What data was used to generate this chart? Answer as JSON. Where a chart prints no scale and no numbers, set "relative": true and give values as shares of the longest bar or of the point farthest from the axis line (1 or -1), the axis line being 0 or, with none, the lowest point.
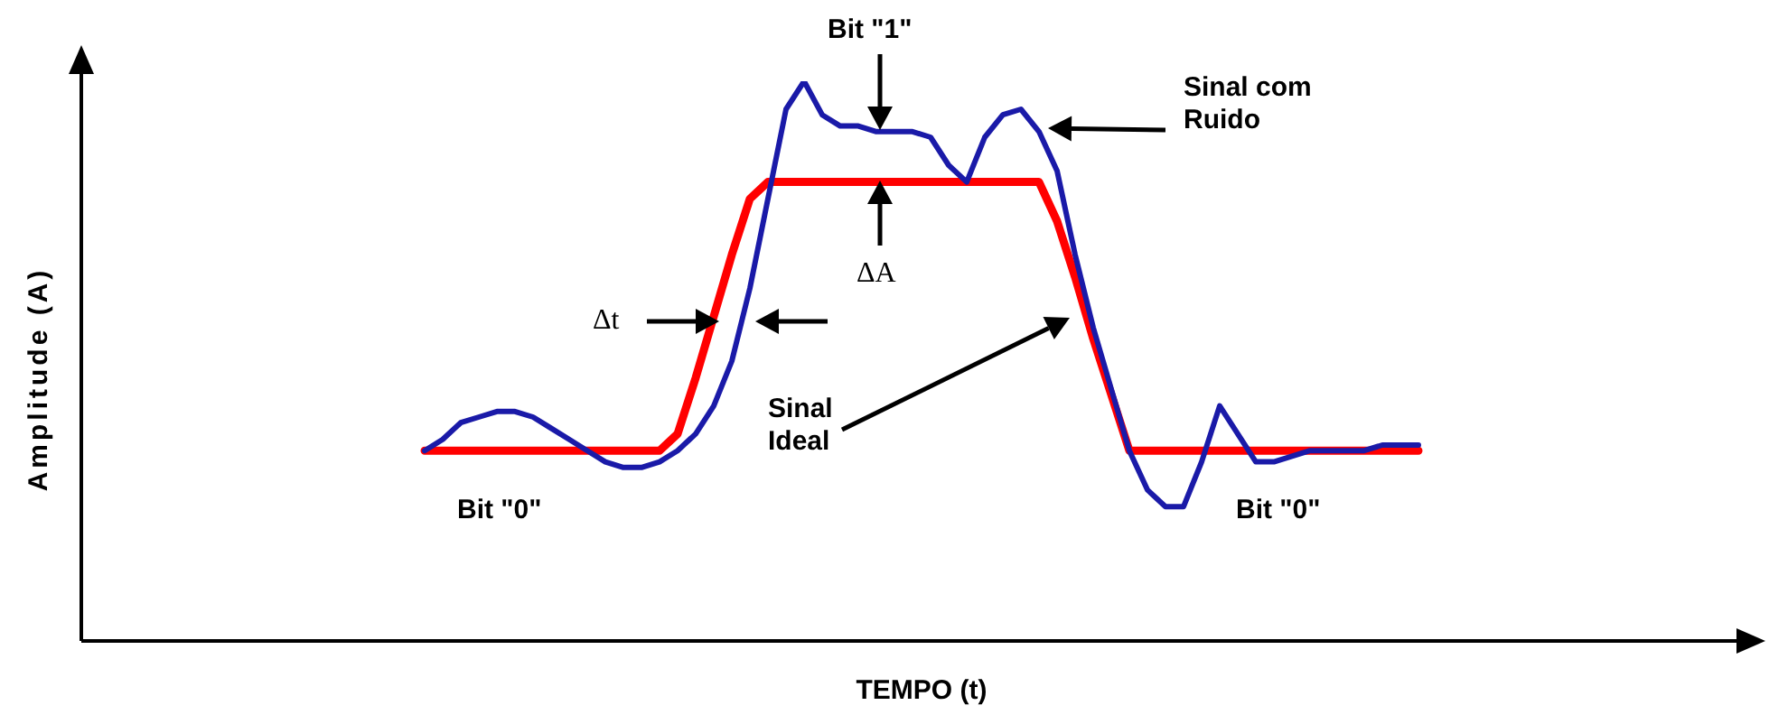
{
  "chart_data": {
    "type": "line",
    "relative": true,
    "xlabel": "TEMPO (t)",
    "ylabel": "Amplitude (A)",
    "legend": false,
    "marker": "none",
    "line_style": "solid",
    "categories": [
      null,
      null,
      null,
      null,
      null,
      null,
      null,
      null,
      null,
      null,
      null,
      null,
      null,
      null,
      null,
      null,
      null,
      null,
      null,
      null,
      null,
      null,
      null,
      null,
      null,
      null,
      null,
      null,
      null,
      null,
      null,
      null,
      null,
      null,
      null,
      null,
      null,
      null,
      null,
      null,
      null,
      null,
      null,
      null,
      null,
      null,
      null,
      null,
      null,
      null,
      null,
      null,
      null,
      null,
      null,
      null,
      null,
      null,
      null,
      null,
      null,
      null,
      null,
      null,
      null,
      null,
      null,
      null,
      null,
      null,
      null,
      null,
      null,
      null,
      null,
      null,
      null,
      null,
      null,
      null,
      null,
      null,
      null,
      null,
      null,
      null,
      null,
      null,
      null,
      null,
      null,
      null,
      null,
      null
    ],
    "series": [
      {
        "color": "#ff0000",
        "values": [
          null,
          null,
          null,
          null,
          null,
          null,
          null,
          null,
          null,
          null,
          null,
          null,
          null,
          null,
          null,
          null,
          null,
          null,
          null,
          0.34,
          0.34,
          0.34,
          0.34,
          0.34,
          0.34,
          0.34,
          0.34,
          0.34,
          0.34,
          0.34,
          0.34,
          0.34,
          0.34,
          0.37,
          0.47,
          0.58,
          0.69,
          0.79,
          0.82,
          0.82,
          0.82,
          0.82,
          0.82,
          0.82,
          0.82,
          0.82,
          0.82,
          0.82,
          0.82,
          0.82,
          0.82,
          0.82,
          0.82,
          0.82,
          0.75,
          0.65,
          0.54,
          0.44,
          0.34,
          0.34,
          0.34,
          0.34,
          0.34,
          0.34,
          0.34,
          0.34,
          0.34,
          0.34,
          0.34,
          0.34,
          0.34,
          0.34,
          0.34,
          0.34,
          0.34,
          null,
          null,
          null,
          null,
          null,
          null,
          null,
          null,
          null,
          null,
          null,
          null,
          null,
          null,
          null,
          null,
          null,
          null,
          null
        ]
      },
      {
        "color": "#1a1aa8",
        "values": [
          null,
          null,
          null,
          null,
          null,
          null,
          null,
          null,
          null,
          null,
          null,
          null,
          null,
          null,
          null,
          null,
          null,
          null,
          null,
          0.34,
          0.36,
          0.39,
          0.4,
          0.41,
          0.41,
          0.4,
          0.38,
          0.36,
          0.34,
          0.32,
          0.31,
          0.31,
          0.32,
          0.34,
          0.37,
          0.42,
          0.5,
          0.63,
          0.79,
          0.95,
          1,
          0.94,
          0.92,
          0.92,
          0.91,
          0.91,
          0.91,
          0.9,
          0.85,
          0.82,
          0.9,
          0.94,
          0.95,
          0.91,
          0.84,
          0.69,
          0.56,
          0.45,
          0.34,
          0.27,
          0.24,
          0.24,
          0.32,
          0.42,
          0.37,
          0.32,
          0.32,
          0.33,
          0.34,
          0.34,
          0.34,
          0.34,
          0.35,
          0.35,
          0.35,
          null,
          null,
          null,
          null,
          null,
          null,
          null,
          null,
          null,
          null,
          null,
          null,
          null,
          null,
          null,
          null,
          null,
          null,
          null
        ]
      }
    ],
    "annotations": [
      "Bit \"1\"",
      "Sinal com Ruido",
      "ΔA",
      "Δt",
      "Sinal Ideal",
      "Bit \"0\"",
      "Bit \"0\""
    ]
  }
}
